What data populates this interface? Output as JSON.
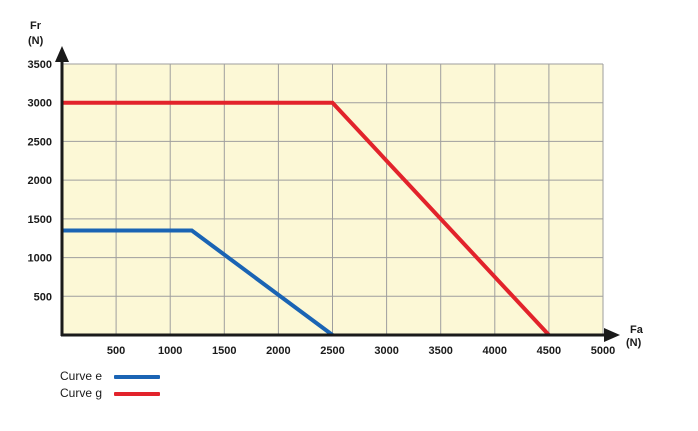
{
  "chart_data": {
    "type": "line",
    "x_axis": {
      "label_line1": "Fa",
      "label_line2": "(N)",
      "min": 0,
      "max": 5000,
      "ticks": [
        500,
        1000,
        1500,
        2000,
        2500,
        3000,
        3500,
        4000,
        4500,
        5000
      ]
    },
    "y_axis": {
      "label_line1": "Fr",
      "label_line2": "(N)",
      "min": 0,
      "max": 3500,
      "ticks": [
        500,
        1000,
        1500,
        2000,
        2500,
        3000,
        3500
      ]
    },
    "grid": true,
    "plot_background": "#fcf8d6",
    "grid_color": "#9e9e9e",
    "legend_position": "bottom-left",
    "series": [
      {
        "name": "Curve e",
        "color": "#1a64b4",
        "points": [
          [
            0,
            1350
          ],
          [
            1200,
            1350
          ],
          [
            2500,
            0
          ]
        ]
      },
      {
        "name": "Curve g",
        "color": "#e2232b",
        "points": [
          [
            0,
            3000
          ],
          [
            2500,
            3000
          ],
          [
            4500,
            0
          ]
        ]
      }
    ]
  }
}
